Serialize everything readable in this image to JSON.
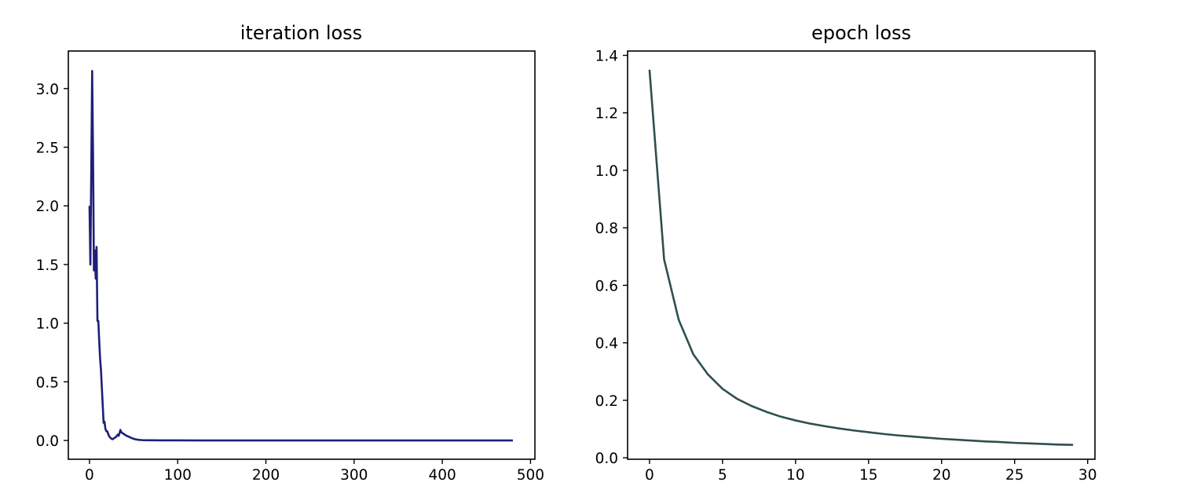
{
  "chart_data": [
    {
      "type": "line",
      "title": "iteration loss",
      "xlabel": "",
      "ylabel": "",
      "xlim": [
        -24,
        505
      ],
      "ylim": [
        -0.16,
        3.32
      ],
      "xticks": [
        0,
        100,
        200,
        300,
        400,
        500
      ],
      "yticks": [
        0.0,
        0.5,
        1.0,
        1.5,
        2.0,
        2.5,
        3.0
      ],
      "xtick_labels": [
        "0",
        "100",
        "200",
        "300",
        "400",
        "500"
      ],
      "ytick_labels": [
        "0.0",
        "0.5",
        "1.0",
        "1.5",
        "2.0",
        "2.5",
        "3.0"
      ],
      "grid": false,
      "colors": {
        "line": "#1f1f7a"
      },
      "series": [
        {
          "x": [
            0,
            1,
            2,
            3,
            4,
            5,
            6,
            7,
            8,
            9,
            10,
            11,
            12,
            13,
            14,
            15,
            16,
            17,
            18,
            19,
            20,
            22,
            24,
            26,
            28,
            30,
            32,
            33,
            34,
            35,
            36,
            38,
            40,
            42,
            45,
            48,
            52,
            56,
            60,
            70,
            80,
            100,
            150,
            200,
            250,
            300,
            350,
            400,
            450,
            480
          ],
          "y": [
            2.0,
            1.5,
            2.3,
            3.15,
            2.45,
            1.45,
            1.62,
            1.38,
            1.65,
            1.02,
            1.02,
            0.85,
            0.7,
            0.6,
            0.45,
            0.3,
            0.15,
            0.16,
            0.1,
            0.08,
            0.08,
            0.04,
            0.02,
            0.01,
            0.02,
            0.03,
            0.05,
            0.04,
            0.06,
            0.09,
            0.07,
            0.06,
            0.05,
            0.04,
            0.03,
            0.02,
            0.01,
            0.005,
            0.003,
            0.002,
            0.001,
            0.001,
            0.0,
            0.0,
            0.0,
            0.0,
            0.0,
            0.0,
            0.0,
            0.0
          ]
        }
      ]
    },
    {
      "type": "line",
      "title": "epoch loss",
      "xlabel": "",
      "ylabel": "",
      "xlim": [
        -1.5,
        30.5
      ],
      "ylim": [
        -0.005,
        1.415
      ],
      "xticks": [
        0,
        5,
        10,
        15,
        20,
        25,
        30
      ],
      "yticks": [
        0.0,
        0.2,
        0.4,
        0.6,
        0.8,
        1.0,
        1.2,
        1.4
      ],
      "xtick_labels": [
        "0",
        "5",
        "10",
        "15",
        "20",
        "25",
        "30"
      ],
      "ytick_labels": [
        "0.0",
        "0.2",
        "0.4",
        "0.6",
        "0.8",
        "1.0",
        "1.2",
        "1.4"
      ],
      "grid": false,
      "colors": {
        "line": "#2f4f4f"
      },
      "series": [
        {
          "x": [
            0,
            1,
            2,
            3,
            4,
            5,
            6,
            7,
            8,
            9,
            10,
            11,
            12,
            13,
            14,
            15,
            16,
            17,
            18,
            19,
            20,
            21,
            22,
            23,
            24,
            25,
            26,
            27,
            28,
            29
          ],
          "y": [
            1.35,
            0.69,
            0.48,
            0.36,
            0.29,
            0.24,
            0.205,
            0.18,
            0.16,
            0.143,
            0.13,
            0.119,
            0.11,
            0.102,
            0.095,
            0.089,
            0.083,
            0.078,
            0.074,
            0.07,
            0.066,
            0.063,
            0.06,
            0.057,
            0.055,
            0.052,
            0.05,
            0.048,
            0.046,
            0.045
          ]
        }
      ]
    }
  ]
}
